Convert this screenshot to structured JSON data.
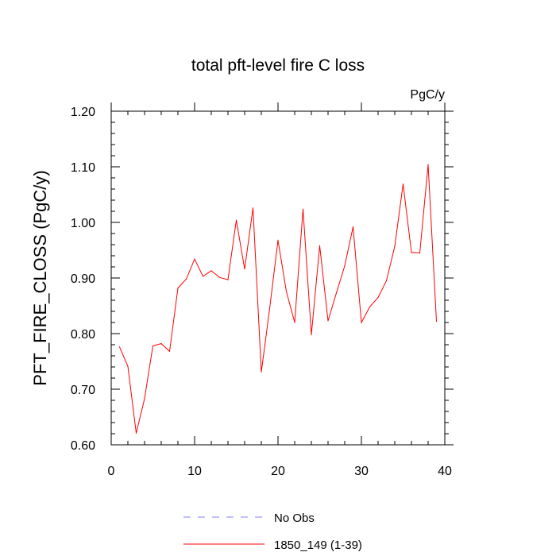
{
  "chart_data": {
    "type": "line",
    "title": "total pft-level fire C loss",
    "units": "PgC/y",
    "xlabel": "",
    "ylabel": "PFT_FIRE_CLOSS  (PgC/y)",
    "xlim": [
      0,
      40
    ],
    "ylim": [
      0.6,
      1.2
    ],
    "x_ticks": [
      0,
      10,
      20,
      30,
      40
    ],
    "x_tick_labels": [
      "0",
      "10",
      "20",
      "30",
      "40"
    ],
    "y_ticks": [
      0.6,
      0.7,
      0.8,
      0.9,
      1.0,
      1.1,
      1.2
    ],
    "y_tick_labels": [
      "0.60",
      "0.70",
      "0.80",
      "0.90",
      "1.00",
      "1.10",
      "1.20"
    ],
    "grid": false,
    "legend_position": "bottom",
    "legend": [
      {
        "name": "No Obs",
        "color": "#8080ff",
        "dash": true
      },
      {
        "name": "1850_149 (1-39)",
        "color": "#ff0000",
        "dash": false
      }
    ],
    "series": [
      {
        "name": "1850_149 (1-39)",
        "color": "#ff0000",
        "x": [
          1,
          2,
          3,
          4,
          5,
          6,
          7,
          8,
          9,
          10,
          11,
          12,
          13,
          14,
          15,
          16,
          17,
          18,
          19,
          20,
          21,
          22,
          23,
          24,
          25,
          26,
          27,
          28,
          29,
          30,
          31,
          32,
          33,
          34,
          35,
          36,
          37,
          38,
          39
        ],
        "values": [
          0.776,
          0.741,
          0.621,
          0.683,
          0.778,
          0.782,
          0.768,
          0.882,
          0.898,
          0.934,
          0.903,
          0.913,
          0.901,
          0.897,
          1.004,
          0.916,
          1.026,
          0.731,
          0.845,
          0.968,
          0.876,
          0.82,
          1.024,
          0.798,
          0.958,
          0.823,
          0.873,
          0.922,
          0.992,
          0.82,
          0.848,
          0.865,
          0.895,
          0.957,
          1.069,
          0.946,
          0.945,
          1.104,
          0.822
        ]
      }
    ]
  }
}
